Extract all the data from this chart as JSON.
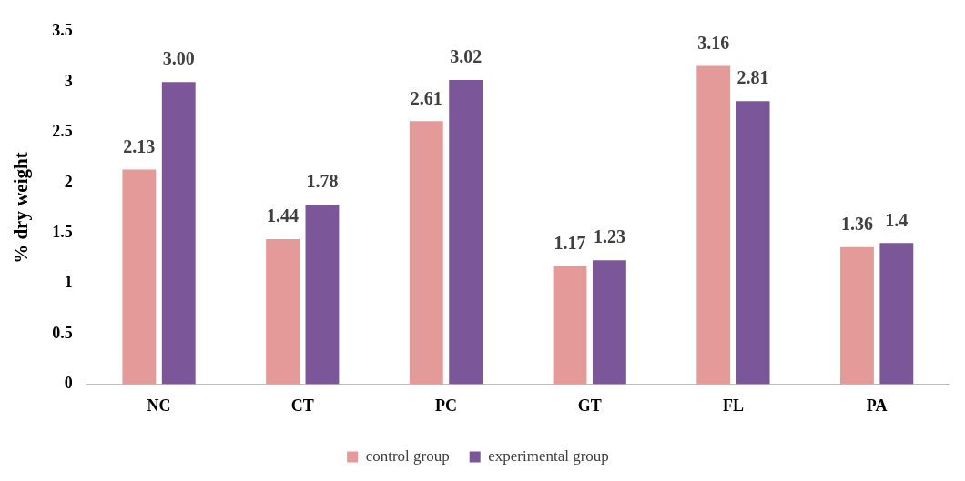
{
  "chart_data": {
    "type": "bar",
    "ylabel": "% dry weight",
    "categories": [
      "NC",
      "CT",
      "PC",
      "GT",
      "FL",
      "PA"
    ],
    "series": [
      {
        "name": "control group",
        "color": "#e59a9a",
        "values": [
          2.13,
          1.44,
          2.61,
          1.17,
          3.16,
          1.36
        ],
        "value_labels": [
          "2.13",
          "1.44",
          "2.61",
          "1.17",
          "3.16",
          "1.36"
        ]
      },
      {
        "name": "experimental group",
        "color": "#7b5799",
        "values": [
          3.0,
          1.78,
          3.02,
          1.23,
          2.81,
          1.4
        ],
        "value_labels": [
          "3.00",
          "1.78",
          "3.02",
          "1.23",
          "2.81",
          "1.4"
        ]
      }
    ],
    "ylim": [
      0,
      3.5
    ],
    "yticks": [
      0,
      0.5,
      1,
      1.5,
      2,
      2.5,
      3,
      3.5
    ],
    "grid": false,
    "legend": "bottom"
  }
}
